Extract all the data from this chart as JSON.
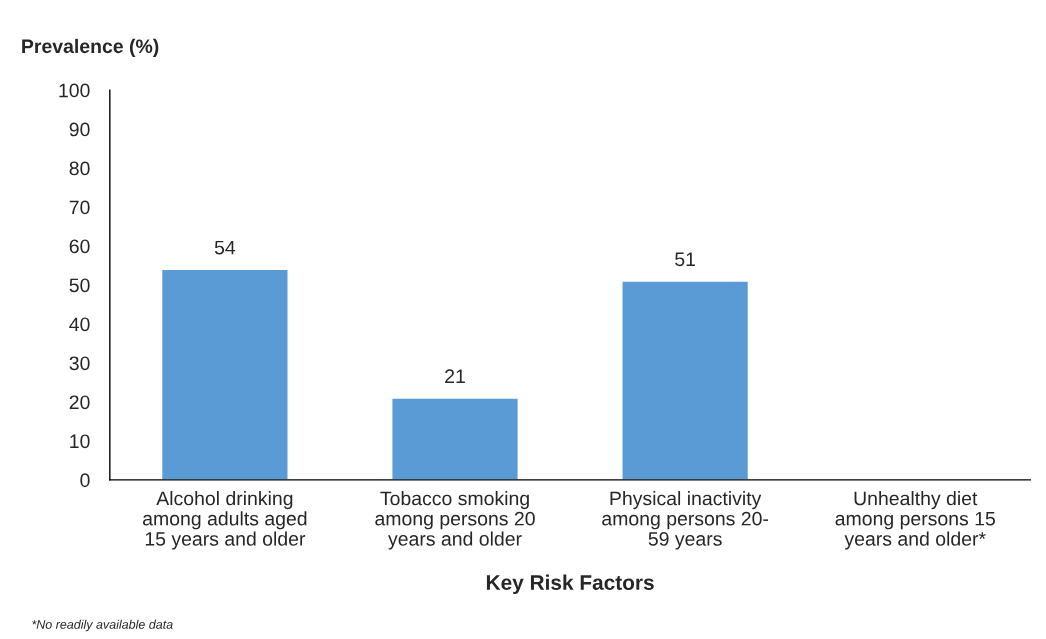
{
  "chart_data": {
    "type": "bar",
    "categories": [
      "Alcohol drinking\namong adults aged\n15 years and older",
      "Tobacco smoking\namong persons 20\nyears and older",
      "Physical inactivity\namong persons 20-\n59 years",
      "Unhealthy diet\namong persons 15\nyears and older*"
    ],
    "values": [
      54,
      21,
      51,
      null
    ],
    "color": "#5b9bd5",
    "ylabel": "Prevalence (%)",
    "xlabel": "Key Risk Factors",
    "ylim": [
      0,
      100
    ],
    "yticks": [
      0,
      10,
      20,
      30,
      40,
      50,
      60,
      70,
      80,
      90,
      100
    ],
    "data_labels": true,
    "grid": false,
    "legend": false,
    "annotations": [
      "*No readily available data"
    ]
  }
}
